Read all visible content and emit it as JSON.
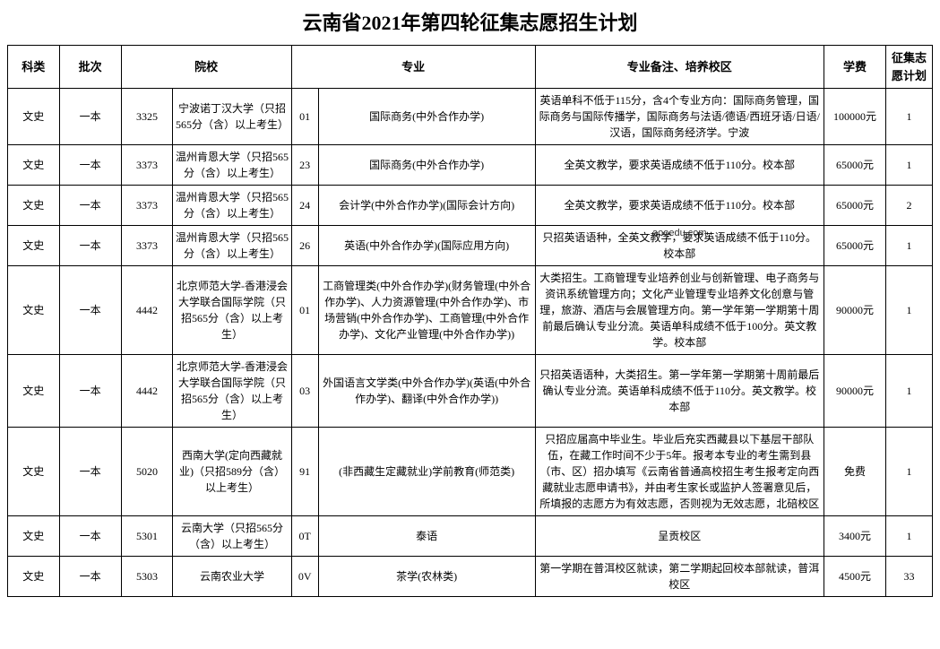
{
  "title": "云南省2021年第四轮征集志愿招生计划",
  "columns": {
    "category": "科类",
    "batch": "批次",
    "school": "院校",
    "major": "专业",
    "remark": "专业备注、培养校区",
    "tuition": "学费",
    "plan": "征集志愿计划"
  },
  "watermark": "aooedu.com",
  "rows": [
    {
      "category": "文史",
      "batch": "一本",
      "school_code": "3325",
      "school_name": "宁波诺丁汉大学（只招565分（含）以上考生）",
      "major_code": "01",
      "major_name": "国际商务(中外合作办学)",
      "remark": "英语单科不低于115分，含4个专业方向：国际商务管理，国际商务与国际传播学，国际商务与法语/德语/西班牙语/日语/汉语，国际商务经济学。宁波",
      "tuition": "100000元",
      "plan": "1"
    },
    {
      "category": "文史",
      "batch": "一本",
      "school_code": "3373",
      "school_name": "温州肯恩大学（只招565分（含）以上考生）",
      "major_code": "23",
      "major_name": "国际商务(中外合作办学)",
      "remark": "全英文教学，要求英语成绩不低于110分。校本部",
      "tuition": "65000元",
      "plan": "1"
    },
    {
      "category": "文史",
      "batch": "一本",
      "school_code": "3373",
      "school_name": "温州肯恩大学（只招565分（含）以上考生）",
      "major_code": "24",
      "major_name": "会计学(中外合作办学)(国际会计方向)",
      "remark": "全英文教学，要求英语成绩不低于110分。校本部",
      "tuition": "65000元",
      "plan": "2",
      "watermark": true
    },
    {
      "category": "文史",
      "batch": "一本",
      "school_code": "3373",
      "school_name": "温州肯恩大学（只招565分（含）以上考生）",
      "major_code": "26",
      "major_name": "英语(中外合作办学)(国际应用方向)",
      "remark": "只招英语语种，全英文教学，要求英语成绩不低于110分。校本部",
      "tuition": "65000元",
      "plan": "1"
    },
    {
      "category": "文史",
      "batch": "一本",
      "school_code": "4442",
      "school_name": "北京师范大学-香港浸会大学联合国际学院（只招565分（含）以上考生）",
      "major_code": "01",
      "major_name": "工商管理类(中外合作办学)(财务管理(中外合作办学)、人力资源管理(中外合作办学)、市场营销(中外合作办学)、工商管理(中外合作办学)、文化产业管理(中外合作办学))",
      "remark": "大类招生。工商管理专业培养创业与创新管理、电子商务与资讯系统管理方向；文化产业管理专业培养文化创意与管理，旅游、酒店与会展管理方向。第一学年第一学期第十周前最后确认专业分流。英语单科成绩不低于100分。英文教学。校本部",
      "tuition": "90000元",
      "plan": "1"
    },
    {
      "category": "文史",
      "batch": "一本",
      "school_code": "4442",
      "school_name": "北京师范大学-香港浸会大学联合国际学院（只招565分（含）以上考生）",
      "major_code": "03",
      "major_name": "外国语言文学类(中外合作办学)(英语(中外合作办学)、翻译(中外合作办学))",
      "remark": "只招英语语种，大类招生。第一学年第一学期第十周前最后确认专业分流。英语单科成绩不低于110分。英文教学。校本部",
      "tuition": "90000元",
      "plan": "1"
    },
    {
      "category": "文史",
      "batch": "一本",
      "school_code": "5020",
      "school_name": "西南大学(定向西藏就业)（只招589分（含）以上考生）",
      "major_code": "91",
      "major_name": "(非西藏生定藏就业)学前教育(师范类)",
      "remark": "只招应届高中毕业生。毕业后充实西藏县以下基层干部队伍，在藏工作时间不少于5年。报考本专业的考生需到县（市、区）招办填写《云南省普通高校招生考生报考定向西藏就业志愿申请书》，并由考生家长或监护人签署意见后，所填报的志愿方为有效志愿，否则视为无效志愿，北碚校区",
      "tuition": "免费",
      "plan": "1"
    },
    {
      "category": "文史",
      "batch": "一本",
      "school_code": "5301",
      "school_name": "云南大学（只招565分（含）以上考生）",
      "major_code": "0T",
      "major_name": "泰语",
      "remark": "呈贡校区",
      "tuition": "3400元",
      "plan": "1"
    },
    {
      "category": "文史",
      "batch": "一本",
      "school_code": "5303",
      "school_name": "云南农业大学",
      "major_code": "0V",
      "major_name": "茶学(农林类)",
      "remark": "第一学期在普洱校区就读，第二学期起回校本部就读，普洱校区",
      "tuition": "4500元",
      "plan": "33"
    }
  ]
}
